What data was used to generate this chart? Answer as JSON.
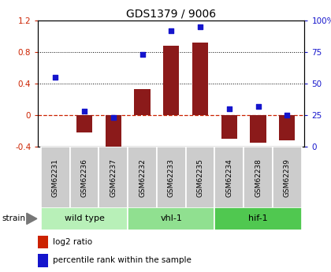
{
  "title": "GDS1379 / 9006",
  "samples": [
    "GSM62231",
    "GSM62236",
    "GSM62237",
    "GSM62232",
    "GSM62233",
    "GSM62235",
    "GSM62234",
    "GSM62238",
    "GSM62239"
  ],
  "log2_ratio": [
    0.0,
    -0.22,
    -0.45,
    0.33,
    0.88,
    0.92,
    -0.3,
    -0.35,
    -0.32
  ],
  "percentile_rank": [
    55,
    28,
    23,
    73,
    92,
    95,
    30,
    32,
    25
  ],
  "groups": [
    {
      "label": "wild type",
      "start": 0,
      "end": 3,
      "color": "#b8f0b8"
    },
    {
      "label": "vhl-1",
      "start": 3,
      "end": 6,
      "color": "#90e090"
    },
    {
      "label": "hif-1",
      "start": 6,
      "end": 9,
      "color": "#50c850"
    }
  ],
  "ylim_left": [
    -0.4,
    1.2
  ],
  "ylim_right": [
    0,
    100
  ],
  "yticks_left": [
    -0.4,
    0.0,
    0.4,
    0.8,
    1.2
  ],
  "ytick_labels_left": [
    "-0.4",
    "0",
    "0.4",
    "0.8",
    "1.2"
  ],
  "yticks_right": [
    0,
    25,
    50,
    75,
    100
  ],
  "ytick_labels_right": [
    "0",
    "25",
    "50",
    "75",
    "100%"
  ],
  "hline_y": 0.0,
  "dotted_lines": [
    0.4,
    0.8
  ],
  "bar_color": "#8b1a1a",
  "dot_color": "#1515cc",
  "bar_width": 0.55,
  "bg_color": "#ffffff",
  "strain_label": "strain",
  "legend_items": [
    {
      "color": "#cc2200",
      "label": "log2 ratio"
    },
    {
      "color": "#1515cc",
      "label": "percentile rank within the sample"
    }
  ],
  "left_axis_color": "#cc2200",
  "right_axis_color": "#1515cc"
}
